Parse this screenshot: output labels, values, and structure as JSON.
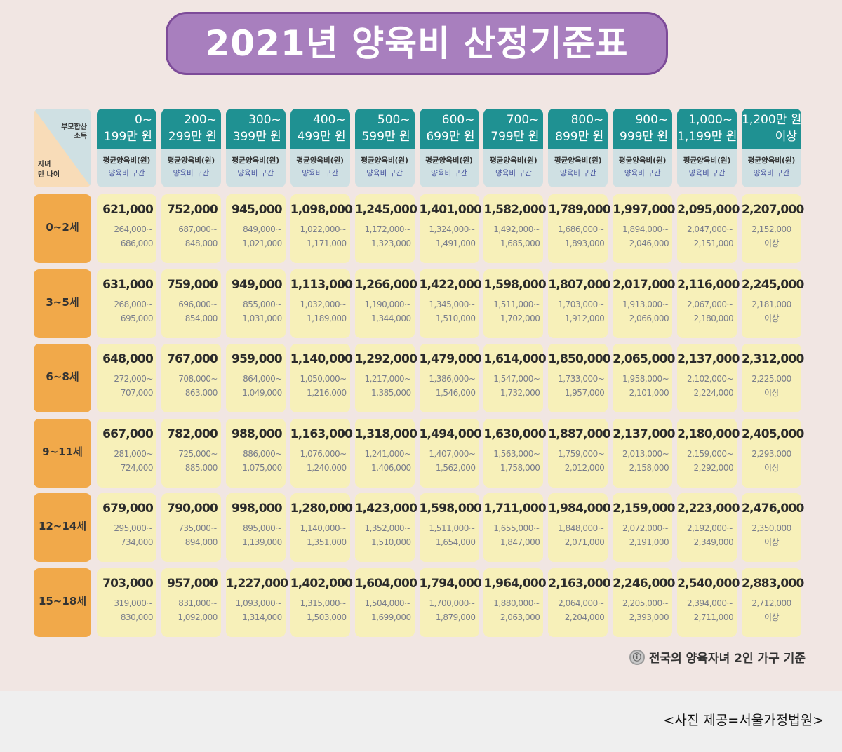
{
  "title": "2021년 양육비 산정기준표",
  "corner": {
    "top": "부모합산\n소득",
    "bottom": "자녀\n만 나이"
  },
  "subheader": {
    "avg": "평균양육비(원)",
    "range": "양육비 구간"
  },
  "columns": [
    [
      "0~",
      "199만 원"
    ],
    [
      "200~",
      "299만 원"
    ],
    [
      "300~",
      "399만 원"
    ],
    [
      "400~",
      "499만 원"
    ],
    [
      "500~",
      "599만 원"
    ],
    [
      "600~",
      "699만 원"
    ],
    [
      "700~",
      "799만 원"
    ],
    [
      "800~",
      "899만 원"
    ],
    [
      "900~",
      "999만 원"
    ],
    [
      "1,000~",
      "1,199만 원"
    ],
    [
      "1,200만 원",
      "이상"
    ]
  ],
  "rows": [
    {
      "age": "0~2세",
      "cells": [
        [
          "621,000",
          "264,000~",
          "686,000"
        ],
        [
          "752,000",
          "687,000~",
          "848,000"
        ],
        [
          "945,000",
          "849,000~",
          "1,021,000"
        ],
        [
          "1,098,000",
          "1,022,000~",
          "1,171,000"
        ],
        [
          "1,245,000",
          "1,172,000~",
          "1,323,000"
        ],
        [
          "1,401,000",
          "1,324,000~",
          "1,491,000"
        ],
        [
          "1,582,000",
          "1,492,000~",
          "1,685,000"
        ],
        [
          "1,789,000",
          "1,686,000~",
          "1,893,000"
        ],
        [
          "1,997,000",
          "1,894,000~",
          "2,046,000"
        ],
        [
          "2,095,000",
          "2,047,000~",
          "2,151,000"
        ],
        [
          "2,207,000",
          "2,152,000",
          "이상"
        ]
      ]
    },
    {
      "age": "3~5세",
      "cells": [
        [
          "631,000",
          "268,000~",
          "695,000"
        ],
        [
          "759,000",
          "696,000~",
          "854,000"
        ],
        [
          "949,000",
          "855,000~",
          "1,031,000"
        ],
        [
          "1,113,000",
          "1,032,000~",
          "1,189,000"
        ],
        [
          "1,266,000",
          "1,190,000~",
          "1,344,000"
        ],
        [
          "1,422,000",
          "1,345,000~",
          "1,510,000"
        ],
        [
          "1,598,000",
          "1,511,000~",
          "1,702,000"
        ],
        [
          "1,807,000",
          "1,703,000~",
          "1,912,000"
        ],
        [
          "2,017,000",
          "1,913,000~",
          "2,066,000"
        ],
        [
          "2,116,000",
          "2,067,000~",
          "2,180,000"
        ],
        [
          "2,245,000",
          "2,181,000",
          "이상"
        ]
      ]
    },
    {
      "age": "6~8세",
      "cells": [
        [
          "648,000",
          "272,000~",
          "707,000"
        ],
        [
          "767,000",
          "708,000~",
          "863,000"
        ],
        [
          "959,000",
          "864,000~",
          "1,049,000"
        ],
        [
          "1,140,000",
          "1,050,000~",
          "1,216,000"
        ],
        [
          "1,292,000",
          "1,217,000~",
          "1,385,000"
        ],
        [
          "1,479,000",
          "1,386,000~",
          "1,546,000"
        ],
        [
          "1,614,000",
          "1,547,000~",
          "1,732,000"
        ],
        [
          "1,850,000",
          "1,733,000~",
          "1,957,000"
        ],
        [
          "2,065,000",
          "1,958,000~",
          "2,101,000"
        ],
        [
          "2,137,000",
          "2,102,000~",
          "2,224,000"
        ],
        [
          "2,312,000",
          "2,225,000",
          "이상"
        ]
      ]
    },
    {
      "age": "9~11세",
      "cells": [
        [
          "667,000",
          "281,000~",
          "724,000"
        ],
        [
          "782,000",
          "725,000~",
          "885,000"
        ],
        [
          "988,000",
          "886,000~",
          "1,075,000"
        ],
        [
          "1,163,000",
          "1,076,000~",
          "1,240,000"
        ],
        [
          "1,318,000",
          "1,241,000~",
          "1,406,000"
        ],
        [
          "1,494,000",
          "1,407,000~",
          "1,562,000"
        ],
        [
          "1,630,000",
          "1,563,000~",
          "1,758,000"
        ],
        [
          "1,887,000",
          "1,759,000~",
          "2,012,000"
        ],
        [
          "2,137,000",
          "2,013,000~",
          "2,158,000"
        ],
        [
          "2,180,000",
          "2,159,000~",
          "2,292,000"
        ],
        [
          "2,405,000",
          "2,293,000",
          "이상"
        ]
      ]
    },
    {
      "age": "12~14세",
      "cells": [
        [
          "679,000",
          "295,000~",
          "734,000"
        ],
        [
          "790,000",
          "735,000~",
          "894,000"
        ],
        [
          "998,000",
          "895,000~",
          "1,139,000"
        ],
        [
          "1,280,000",
          "1,140,000~",
          "1,351,000"
        ],
        [
          "1,423,000",
          "1,352,000~",
          "1,510,000"
        ],
        [
          "1,598,000",
          "1,511,000~",
          "1,654,000"
        ],
        [
          "1,711,000",
          "1,655,000~",
          "1,847,000"
        ],
        [
          "1,984,000",
          "1,848,000~",
          "2,071,000"
        ],
        [
          "2,159,000",
          "2,072,000~",
          "2,191,000"
        ],
        [
          "2,223,000",
          "2,192,000~",
          "2,349,000"
        ],
        [
          "2,476,000",
          "2,350,000",
          "이상"
        ]
      ]
    },
    {
      "age": "15~18세",
      "cells": [
        [
          "703,000",
          "319,000~",
          "830,000"
        ],
        [
          "957,000",
          "831,000~",
          "1,092,000"
        ],
        [
          "1,227,000",
          "1,093,000~",
          "1,314,000"
        ],
        [
          "1,402,000",
          "1,315,000~",
          "1,503,000"
        ],
        [
          "1,604,000",
          "1,504,000~",
          "1,699,000"
        ],
        [
          "1,794,000",
          "1,700,000~",
          "1,879,000"
        ],
        [
          "1,964,000",
          "1,880,000~",
          "2,063,000"
        ],
        [
          "2,163,000",
          "2,064,000~",
          "2,204,000"
        ],
        [
          "2,246,000",
          "2,205,000~",
          "2,393,000"
        ],
        [
          "2,540,000",
          "2,394,000~",
          "2,711,000"
        ],
        [
          "2,883,000",
          "2,712,000",
          "이상"
        ]
      ]
    }
  ],
  "note": "전국의 양육자녀 2인 가구 기준",
  "note_icon": "info-seal-icon",
  "caption": "<사진 제공=서울가정법원>"
}
